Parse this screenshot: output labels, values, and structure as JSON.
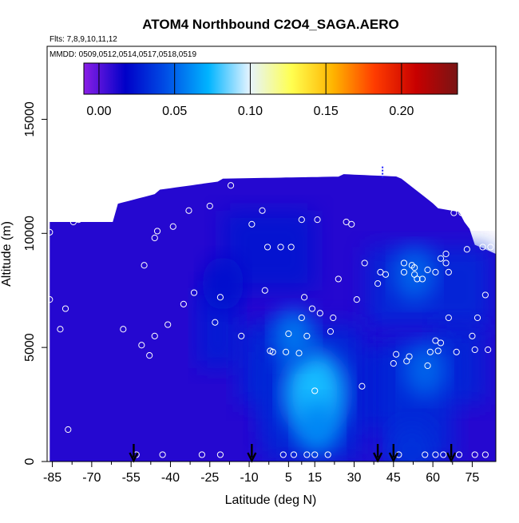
{
  "title": "ATOM4 Northbound C2O4_SAGA.AERO",
  "flights_text": "Flts: 7,8,9,10,11,12",
  "dates_text": "MMDD: 0509,0512,0514,0517,0518,0519",
  "chart_data": {
    "type": "heatmap",
    "title": "ATOM4 Northbound C2O4_SAGA.AERO",
    "xlabel": "Latitude (deg N)",
    "ylabel": "Altitude (m)",
    "xlim": [
      -87,
      84
    ],
    "ylim": [
      0,
      18200
    ],
    "x_ticks": [
      -85,
      -70,
      -55,
      -40,
      -25,
      -10,
      5,
      15,
      30,
      45,
      60,
      75
    ],
    "y_ticks": [
      0,
      5000,
      10000,
      15000
    ],
    "colorbar": {
      "ticks": [
        0.0,
        0.05,
        0.1,
        0.15,
        0.2
      ],
      "tick_labels": [
        "0.00",
        "0.05",
        "0.10",
        "0.15",
        "0.20"
      ],
      "range": [
        -0.01,
        0.237
      ],
      "colors": [
        "#8a1ee6",
        "#0000c8",
        "#0050e6",
        "#00b4ff",
        "#e6f4ff",
        "#ffff50",
        "#ffb400",
        "#ff3c00",
        "#c80000",
        "#781414"
      ]
    },
    "arrow_latitudes": [
      -54,
      -9,
      39,
      45,
      67
    ],
    "upper_marker": {
      "x": 39,
      "y": 12650
    },
    "background_value": 0.01,
    "enhanced_regions": [
      {
        "x": 15,
        "y": 3000,
        "value": 0.075
      },
      {
        "x": 16,
        "y": 1500,
        "value": 0.06
      },
      {
        "x": 7,
        "y": 5500,
        "value": 0.055
      },
      {
        "x": 57,
        "y": 4000,
        "value": 0.05
      },
      {
        "x": 53,
        "y": 8200,
        "value": 0.05
      },
      {
        "x": 52,
        "y": 500,
        "value": 0.035
      },
      {
        "x": -20,
        "y": 7800,
        "value": 0.022
      }
    ],
    "sample_points": [
      [
        -86,
        10050
      ],
      [
        -86,
        7100
      ],
      [
        -82,
        5800
      ],
      [
        -80,
        6700
      ],
      [
        -79,
        1400
      ],
      [
        -77,
        10500
      ],
      [
        -75,
        10600
      ],
      [
        -74,
        10650
      ],
      [
        -71,
        11300
      ],
      [
        -69,
        11350
      ],
      [
        -66,
        11500
      ],
      [
        -64,
        11500
      ],
      [
        -58,
        5800
      ],
      [
        -53,
        300
      ],
      [
        -51,
        5100
      ],
      [
        -50,
        8600
      ],
      [
        -48,
        4650
      ],
      [
        -46,
        5500
      ],
      [
        -46,
        9800
      ],
      [
        -45,
        10100
      ],
      [
        -43,
        300
      ],
      [
        -41,
        6000
      ],
      [
        -39,
        10300
      ],
      [
        -35,
        6900
      ],
      [
        -33,
        11000
      ],
      [
        -31,
        7400
      ],
      [
        -28,
        300
      ],
      [
        -25,
        11200
      ],
      [
        -23,
        6100
      ],
      [
        -21,
        7200
      ],
      [
        -21,
        300
      ],
      [
        -17,
        12100
      ],
      [
        -13,
        5500
      ],
      [
        -9,
        10400
      ],
      [
        -5,
        11000
      ],
      [
        -4,
        7500
      ],
      [
        -3,
        9400
      ],
      [
        -2,
        4850
      ],
      [
        -1,
        4800
      ],
      [
        2,
        9400
      ],
      [
        3,
        300
      ],
      [
        4,
        4800
      ],
      [
        5,
        5600
      ],
      [
        6,
        9400
      ],
      [
        7,
        300
      ],
      [
        9,
        4750
      ],
      [
        10,
        10600
      ],
      [
        10,
        6300
      ],
      [
        11,
        7200
      ],
      [
        12,
        5500
      ],
      [
        12,
        300
      ],
      [
        14,
        6700
      ],
      [
        15,
        3100
      ],
      [
        15,
        300
      ],
      [
        16,
        10600
      ],
      [
        17,
        6500
      ],
      [
        20,
        300
      ],
      [
        21,
        5700
      ],
      [
        22,
        6300
      ],
      [
        24,
        8000
      ],
      [
        27,
        10500
      ],
      [
        29,
        10400
      ],
      [
        31,
        7100
      ],
      [
        33,
        3300
      ],
      [
        34,
        8700
      ],
      [
        39,
        7800
      ],
      [
        40,
        8300
      ],
      [
        42,
        8200
      ],
      [
        45,
        4300
      ],
      [
        46,
        4700
      ],
      [
        47,
        300
      ],
      [
        49,
        8700
      ],
      [
        49,
        8300
      ],
      [
        50,
        4400
      ],
      [
        51,
        4600
      ],
      [
        52,
        8600
      ],
      [
        53,
        8500
      ],
      [
        53,
        8200
      ],
      [
        54,
        8000
      ],
      [
        56,
        8000
      ],
      [
        57,
        300
      ],
      [
        58,
        8400
      ],
      [
        58,
        4200
      ],
      [
        59,
        4800
      ],
      [
        61,
        300
      ],
      [
        61,
        5300
      ],
      [
        61,
        8300
      ],
      [
        62,
        4850
      ],
      [
        63,
        5200
      ],
      [
        63,
        8900
      ],
      [
        64,
        300
      ],
      [
        65,
        8700
      ],
      [
        65,
        9100
      ],
      [
        66,
        8300
      ],
      [
        66,
        6300
      ],
      [
        68,
        10900
      ],
      [
        69,
        4800
      ],
      [
        70,
        300
      ],
      [
        71,
        10900
      ],
      [
        73,
        9300
      ],
      [
        75,
        5500
      ],
      [
        76,
        300
      ],
      [
        76,
        4900
      ],
      [
        77,
        6300
      ],
      [
        79,
        9400
      ],
      [
        80,
        7300
      ],
      [
        80,
        300
      ],
      [
        81,
        4900
      ],
      [
        82,
        9400
      ]
    ],
    "grid": false,
    "legend": "colorbar-top"
  }
}
